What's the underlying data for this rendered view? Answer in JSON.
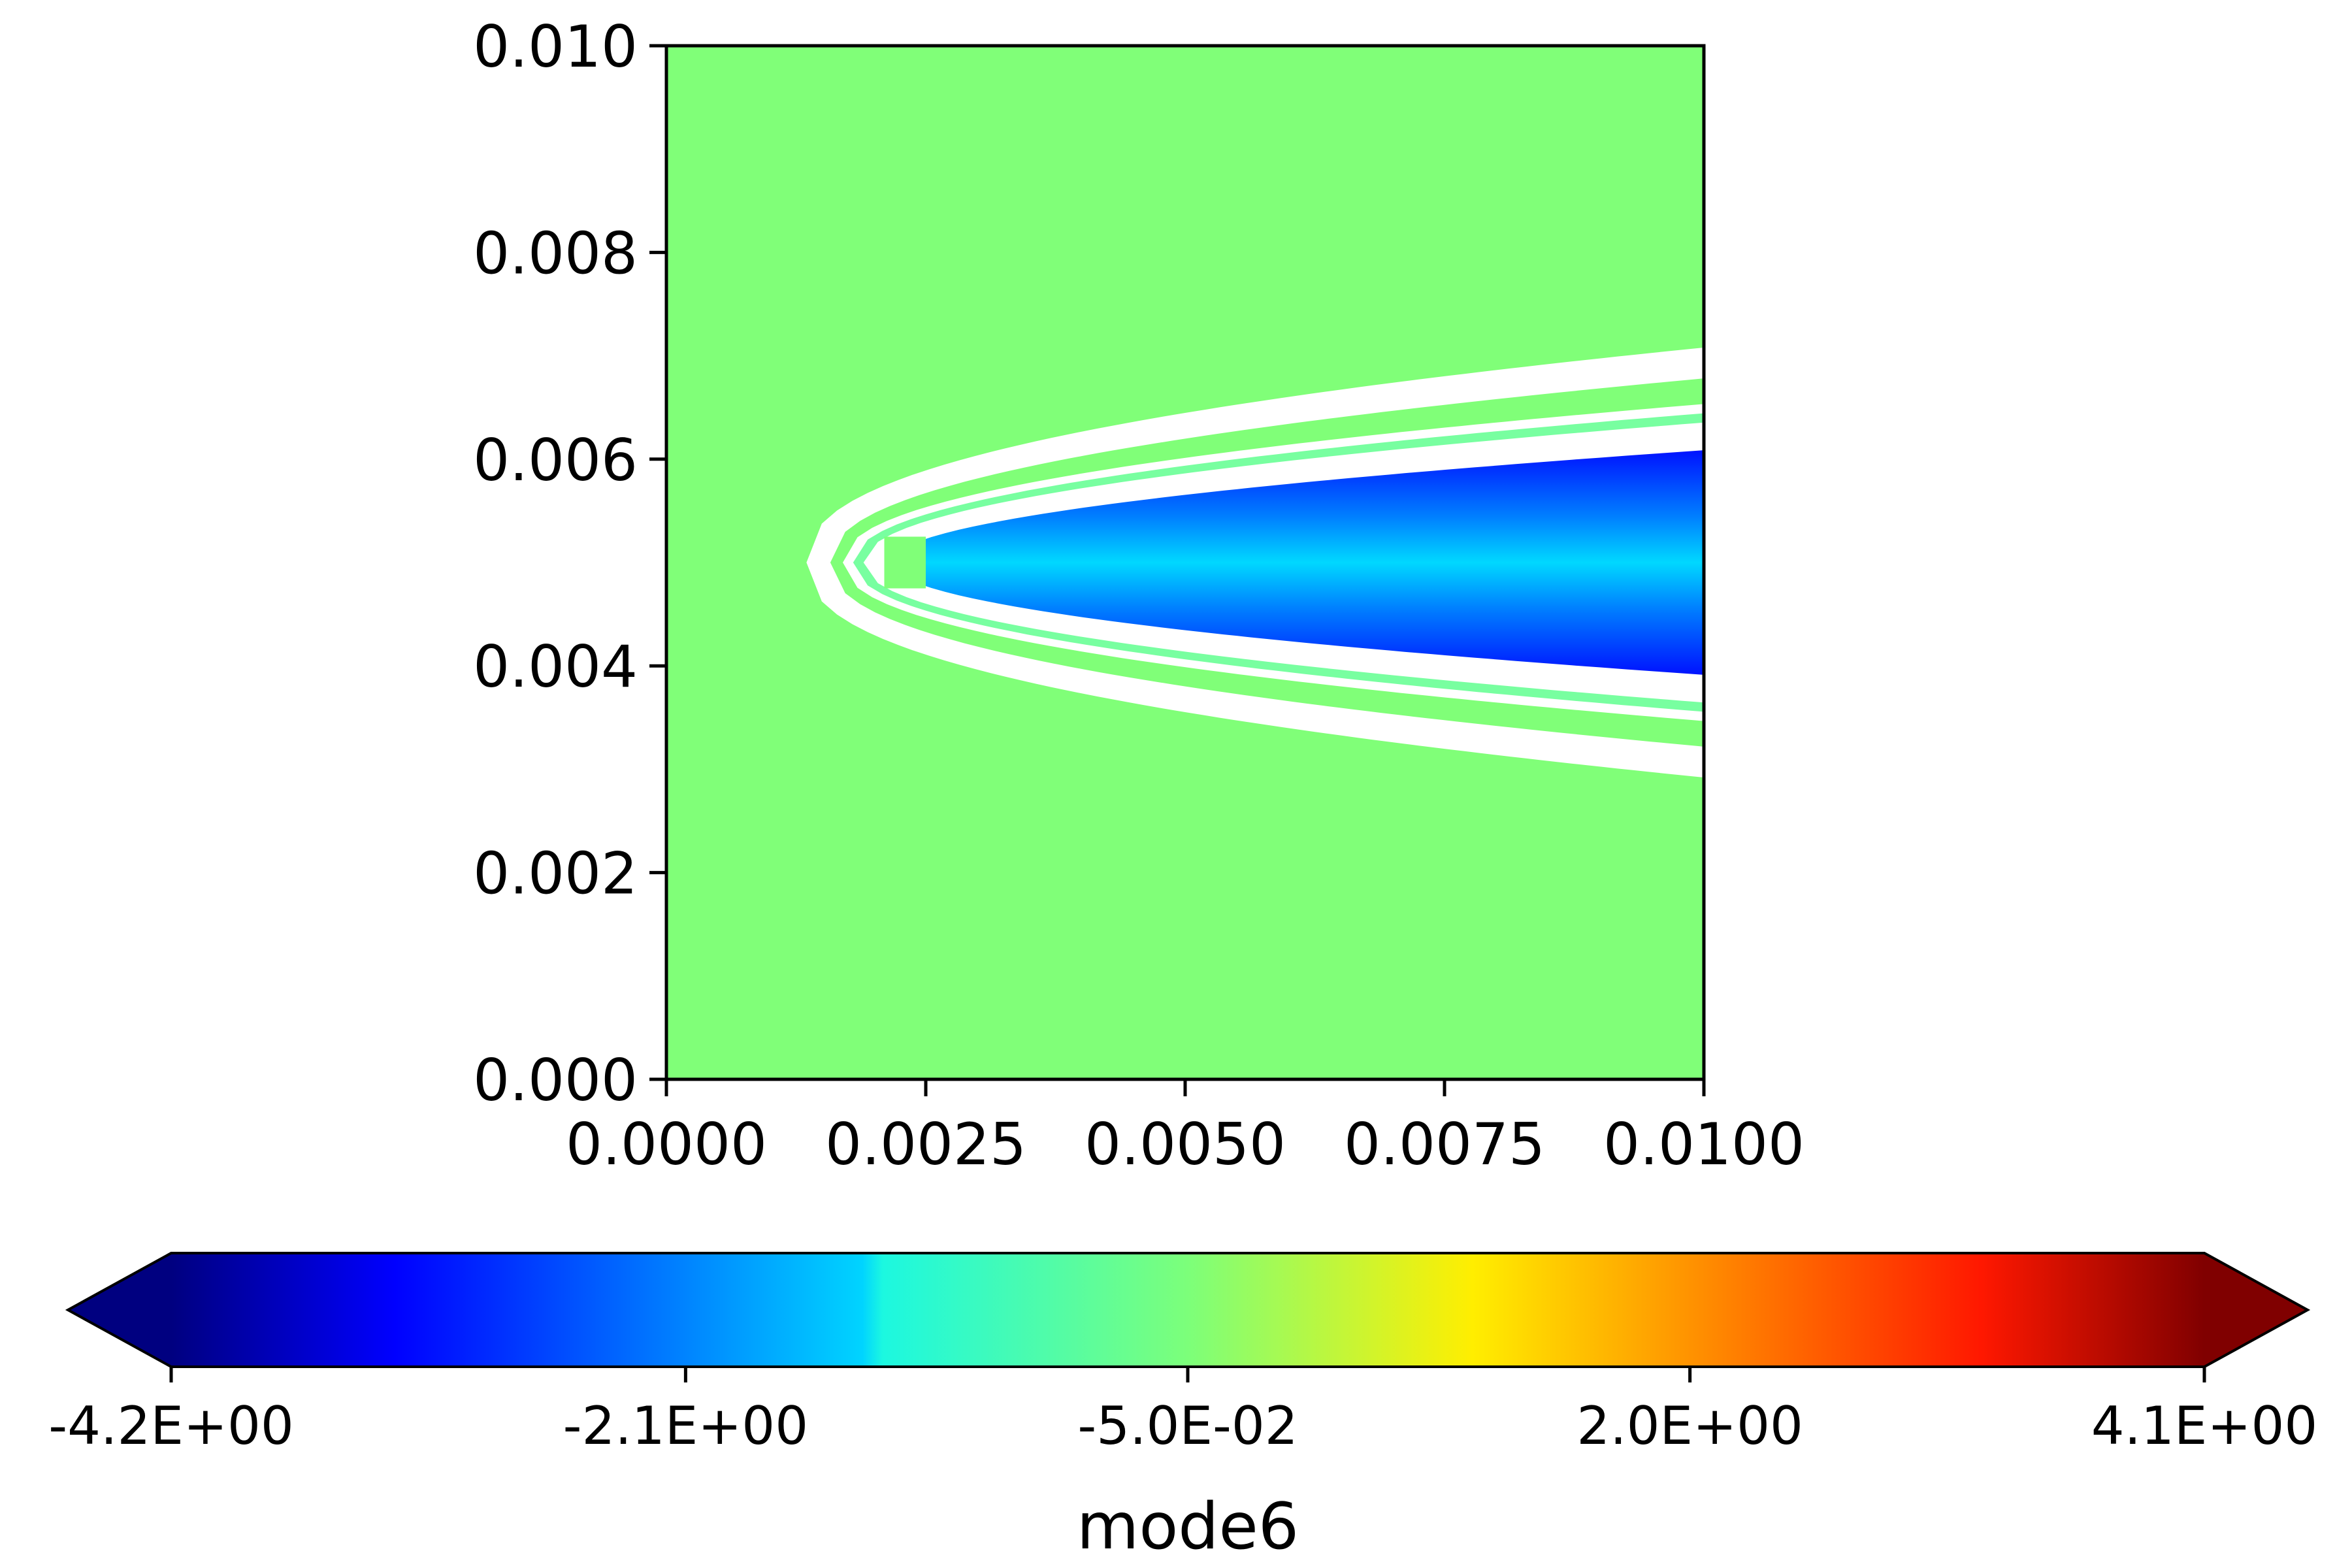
{
  "chart_data": {
    "type": "heatmap",
    "title": "",
    "xlabel": "",
    "ylabel": "",
    "xlim": [
      0.0,
      0.01
    ],
    "ylim": [
      0.0,
      0.01
    ],
    "x_ticks": [
      "0.0000",
      "0.0025",
      "0.0050",
      "0.0075",
      "0.0100"
    ],
    "y_ticks": [
      "0.000",
      "0.002",
      "0.004",
      "0.006",
      "0.008",
      "0.010"
    ],
    "colormap": "jet",
    "background_color": "#80ff78",
    "colorbar": {
      "label": "mode6",
      "range": [
        -4.2,
        4.1
      ],
      "extend": "both",
      "orientation": "horizontal",
      "ticks": [
        "-4.2E+00",
        "-2.1E+00",
        "-5.0E-02",
        "2.0E+00",
        "4.1E+00"
      ]
    },
    "obstacle": {
      "x": [
        0.0021,
        0.0025
      ],
      "y": [
        0.00475,
        0.00525
      ],
      "color": "#80ff78"
    },
    "wake_field": {
      "description_colors": {
        "core": "#00c8ff",
        "inner": "#0030ff",
        "band_neg": "#0080ff",
        "band_pos": "#ff4000",
        "halo": "#ffffff"
      },
      "centerline_y": 0.005,
      "start_x": 0.0014,
      "core_halfwidth_at_end": 0.0011,
      "red_band_halfwidth_at_end": 0.00125,
      "outer_halo_halfwidth_at_end": 0.0021
    }
  }
}
